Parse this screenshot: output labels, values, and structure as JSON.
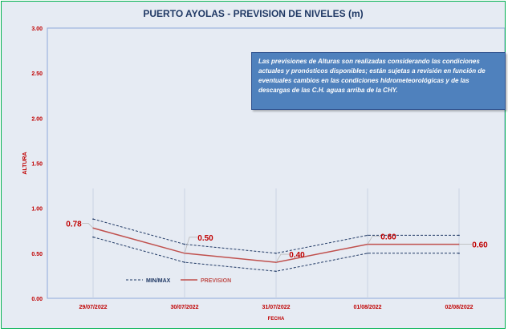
{
  "chart_data": {
    "type": "line",
    "title": "PUERTO AYOLAS - PREVISION DE NIVELES (m)",
    "xlabel": "FECHA",
    "ylabel": "ALTURA",
    "categories": [
      "29/07/2022",
      "30/07/2022",
      "31/07/2022",
      "01/08/2022",
      "02/08/2022"
    ],
    "ylim": [
      0,
      3
    ],
    "yticks": [
      "0.00",
      "0.50",
      "1.00",
      "1.50",
      "2.00",
      "2.50",
      "3.00"
    ],
    "series": [
      {
        "name": "MIN/MAX",
        "style": "dashed",
        "color": "#1f3864",
        "values": [
          0.88,
          0.6,
          0.5,
          0.7,
          0.7
        ]
      },
      {
        "name": "MIN/MAX",
        "style": "dashed",
        "color": "#1f3864",
        "values": [
          0.68,
          0.4,
          0.3,
          0.5,
          0.5
        ]
      },
      {
        "name": "PREVISION",
        "style": "solid",
        "color": "#c0504d",
        "values": [
          0.78,
          0.5,
          0.4,
          0.6,
          0.6
        ]
      }
    ],
    "data_labels": [
      "0.78",
      "0.50",
      "0.40",
      "0.60",
      "0.60"
    ],
    "grid": "vertical",
    "legend": "bottom-left"
  },
  "note": {
    "text": "Las previsiones de Alturas son realizadas considerando las condiciones actuales y pronósticos disponibles; están sujetas a revisión en función de eventuales cambios en las condiciones hidrometeorológicas y de las descargas de las C.H. aguas arriba de la CHY."
  },
  "colors": {
    "background": "#e6ebf3",
    "frame": "#00b050",
    "title": "#1f3864",
    "axis_text": "#c00000",
    "note_fill": "#4f81bd"
  }
}
